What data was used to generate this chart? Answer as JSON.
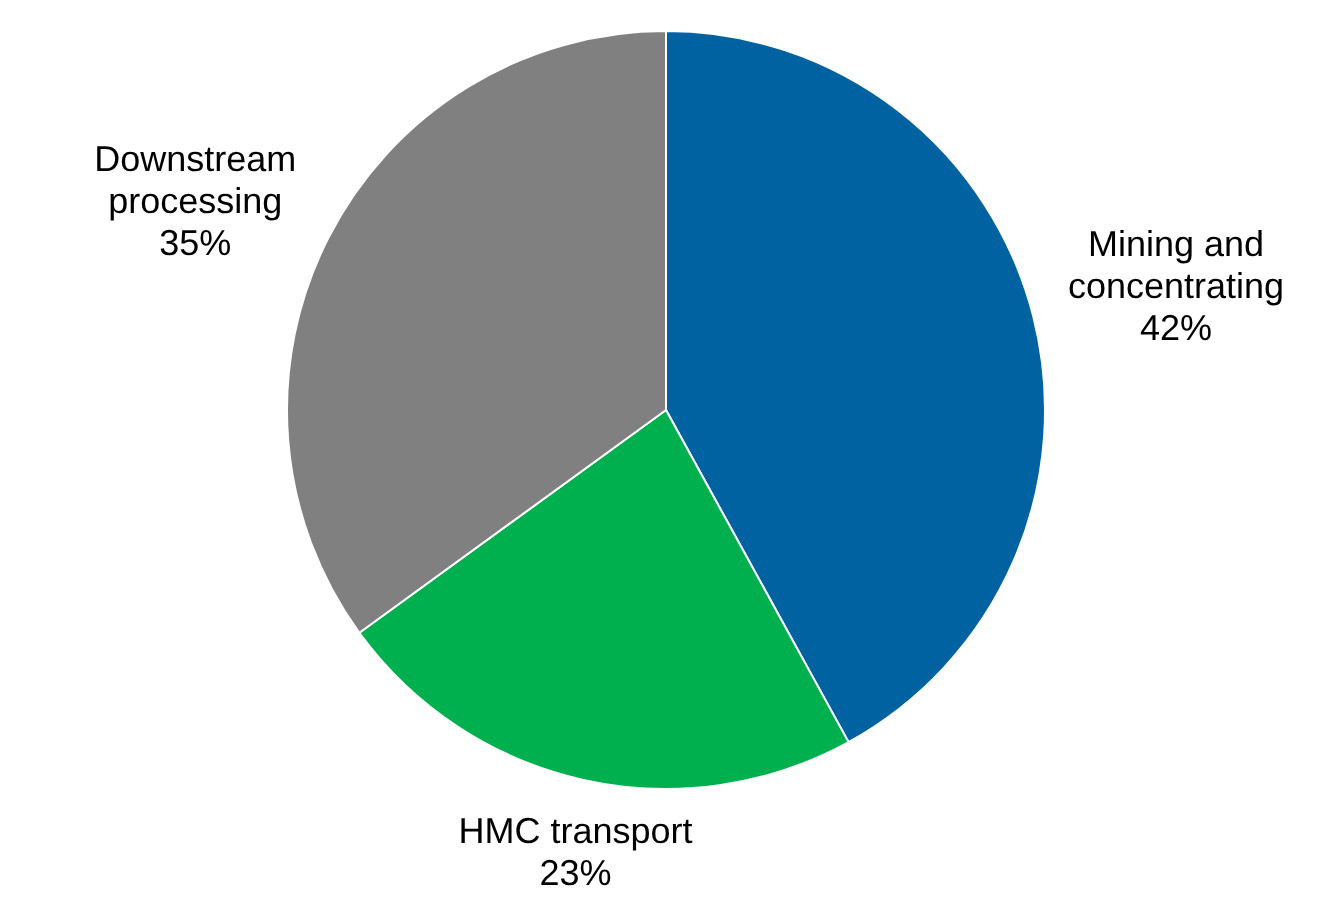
{
  "chart_data": {
    "type": "pie",
    "categories": [
      "Mining and concentrating",
      "HMC transport",
      "Downstream processing"
    ],
    "values": [
      42,
      23,
      35
    ],
    "value_labels": [
      "42%",
      "23%",
      "35%"
    ],
    "colors": [
      "#0062a0",
      "#00b04f",
      "#808080"
    ],
    "legend": false
  }
}
